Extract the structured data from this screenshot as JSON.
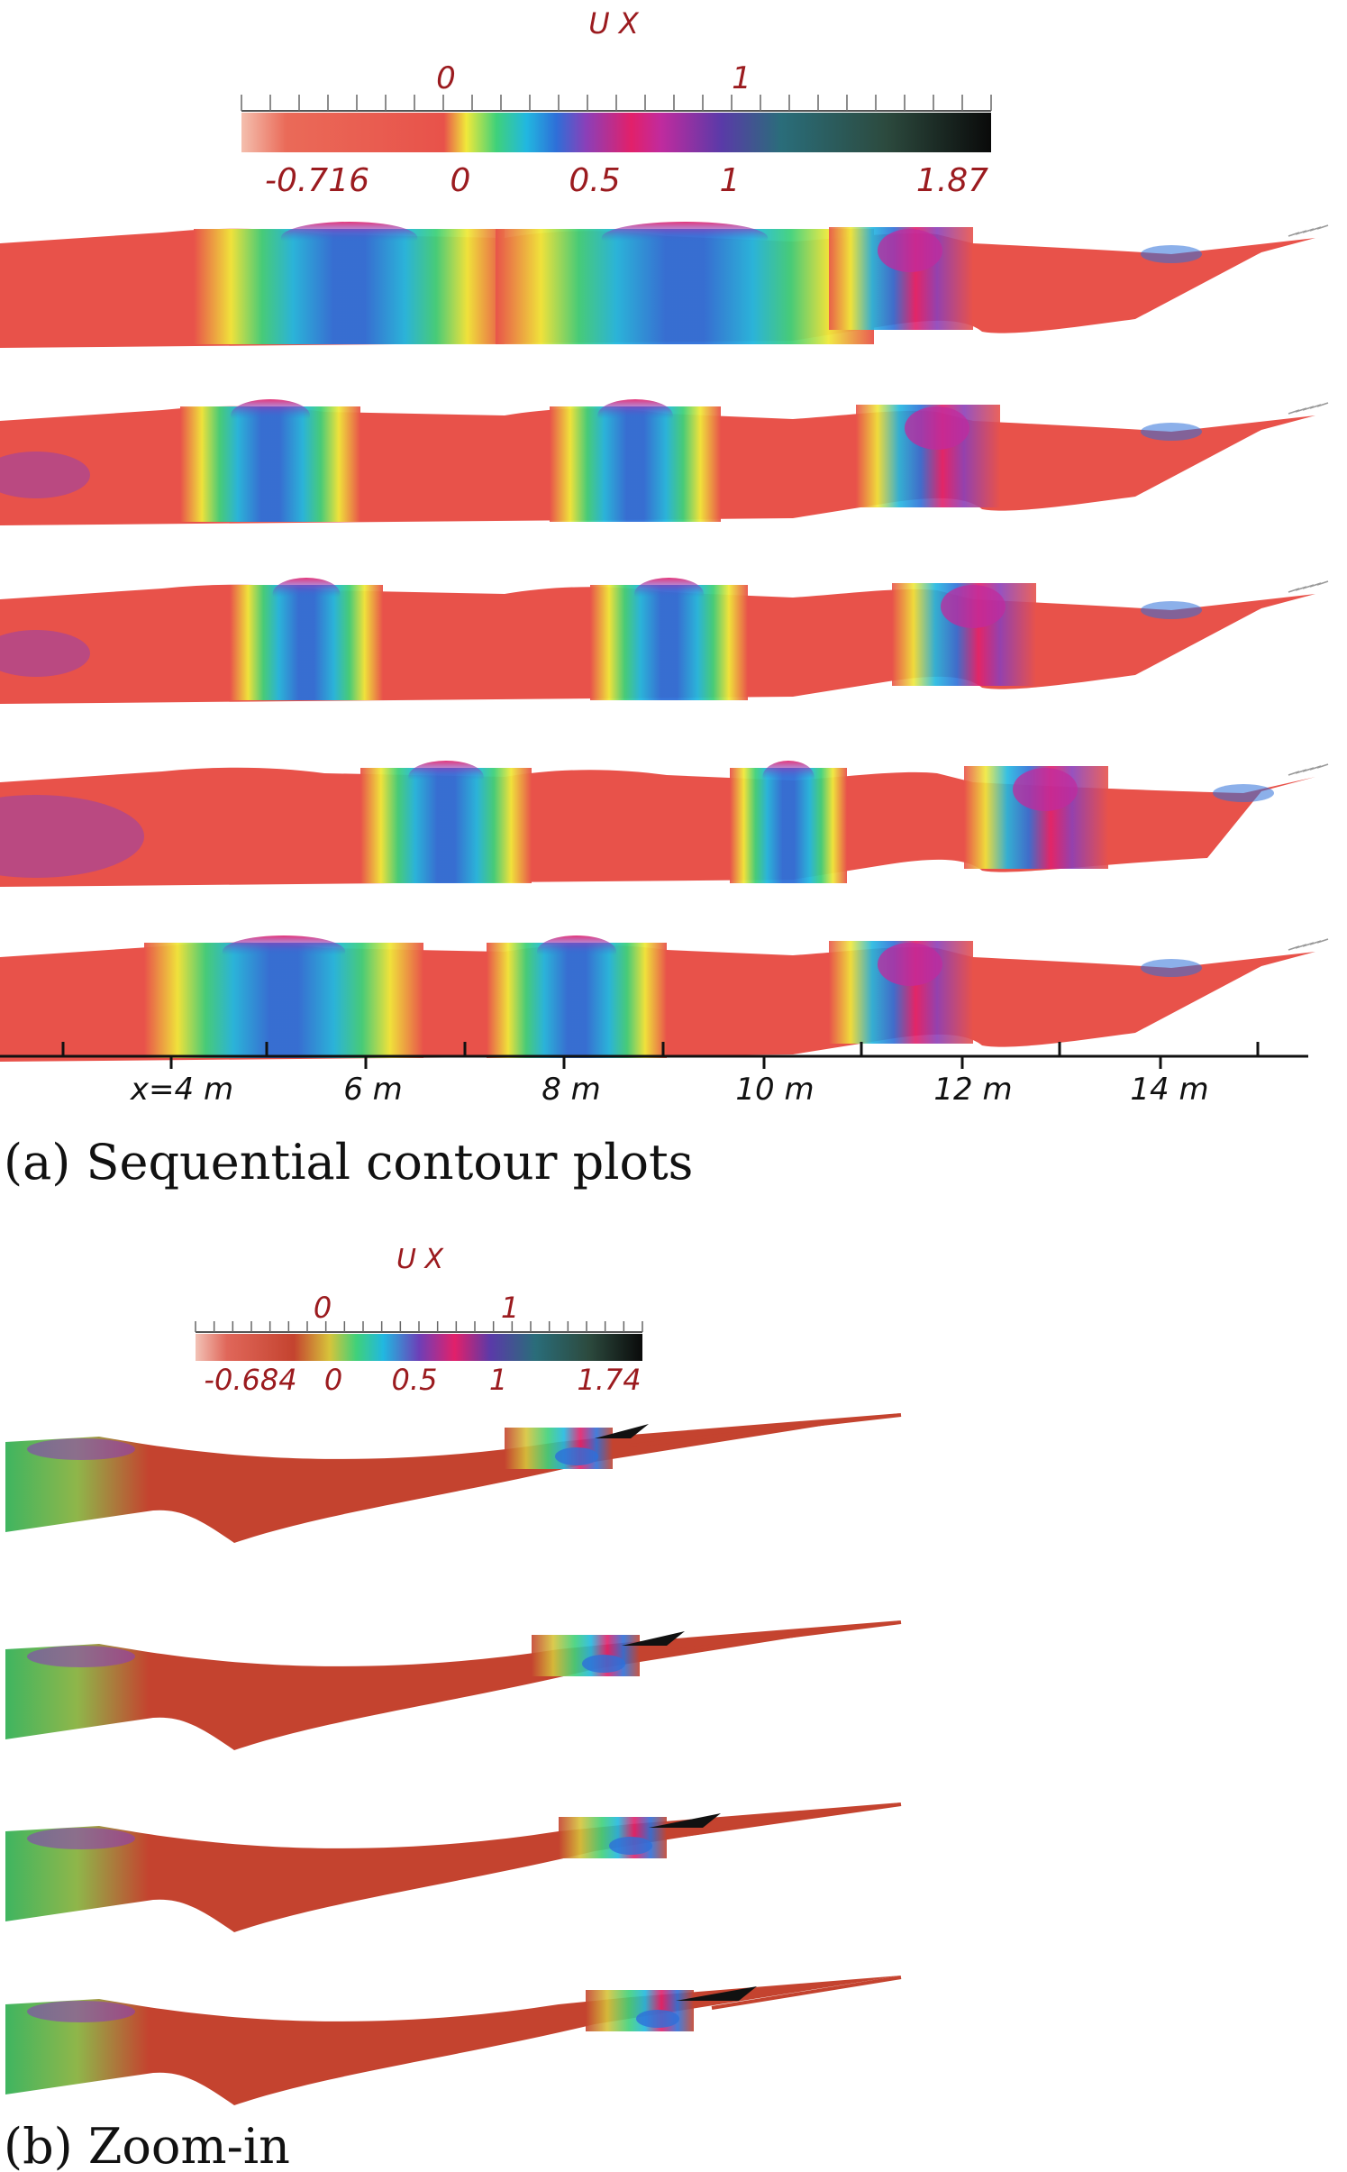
{
  "panel_a": {
    "colorbar": {
      "title": "U X",
      "top_labels": [
        "0",
        "1"
      ],
      "bottom_labels": [
        "-0.716",
        "0",
        "0.5",
        "1",
        "1.87"
      ],
      "min": -0.716,
      "max": 1.87
    },
    "axis_labels": [
      "x=4 m",
      "6 m",
      "8 m",
      "10 m",
      "12 m",
      "14 m"
    ],
    "caption": "(a) Sequential contour plots"
  },
  "panel_b": {
    "colorbar": {
      "title": "U X",
      "top_labels": [
        "0",
        "1"
      ],
      "bottom_labels": [
        "-0.684",
        "0",
        "0.5",
        "1",
        "1.74"
      ],
      "min": -0.684,
      "max": 1.74
    },
    "caption": "(b) Zoom-in"
  },
  "colors": {
    "rainbow_stops": [
      "#f3b7a8",
      "#e8524a",
      "#e8524a",
      "#f0e93a",
      "#3fd17a",
      "#21b8e0",
      "#2e6fd8",
      "#8b3fb8",
      "#e2206a",
      "#c02b9e",
      "#5a3aa8",
      "#2a6d7a",
      "#2c4a3e",
      "#111111"
    ],
    "body_red": "#e8524a",
    "body_brick": "#c4432f",
    "axis": "#111111"
  }
}
